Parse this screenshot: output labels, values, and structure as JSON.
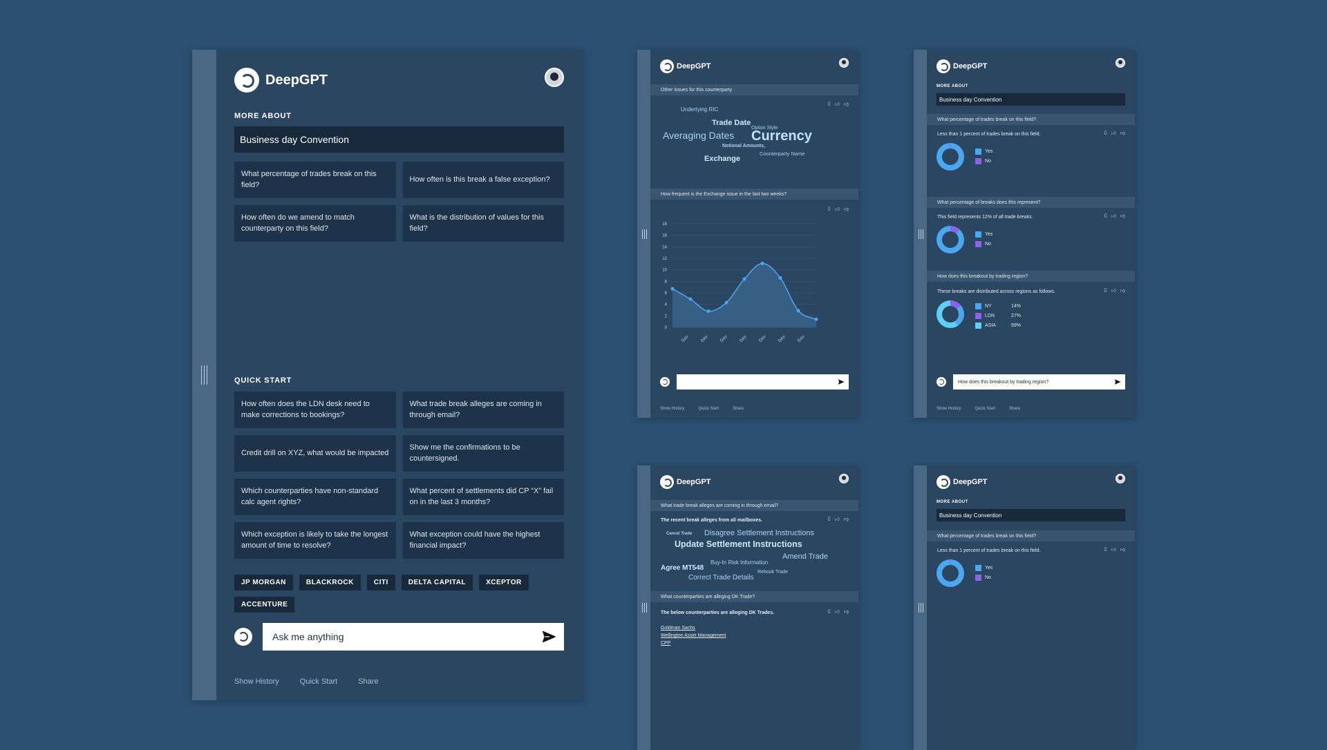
{
  "main": {
    "brand": "DeepGPT",
    "more_about_title": "MORE ABOUT",
    "topic": "Business day Convention",
    "suggestions": [
      "What percentage of trades break on this field?",
      "How often is this break a false exception?",
      "How often do we amend to match counterparty on this field?",
      "What is the distribution of values for this field?"
    ],
    "quick_start_title": "QUICK START",
    "quick_start": [
      "How often does the LDN desk need to make corrections to bookings?",
      "What trade break alleges are coming in through email?",
      "Credit drill on XYZ, what would be impacted",
      "Show me the confirmations to be countersigned.",
      "Which counterparties have non-standard calc agent rights?",
      "What percent of settlements did CP “X” fail on in the last 3 months?",
      "Which exception is likely to take the longest amount of time to resolve?",
      "What exception could have the highest financial impact?"
    ],
    "chips": [
      "JP MORGAN",
      "BLACKROCK",
      "CITI",
      "DELTA CAPITAL",
      "XCEPTOR",
      "ACCENTURE"
    ],
    "ask_placeholder": "Ask me anything",
    "footer": [
      "Show History",
      "Quick Start",
      "Share"
    ]
  },
  "panel_chart": {
    "brand": "DeepGPT",
    "q1": "Other issues for this counterparty",
    "words": [
      {
        "text": "Underlying RIC"
      },
      {
        "text": "Trade Date"
      },
      {
        "text": "Option Style"
      },
      {
        "text": "Averaging Dates"
      },
      {
        "text": "Currency"
      },
      {
        "text": "Notional Amounts,"
      },
      {
        "text": "Counterparty Name"
      },
      {
        "text": "Exchange"
      }
    ],
    "q2": "How frequent is the Exchange issue in the last two weeks?",
    "footer": [
      "Show History",
      "Quick Start",
      "Share"
    ]
  },
  "chart_data": {
    "type": "line",
    "title": "",
    "xlabel": "",
    "ylabel": "",
    "ylim": [
      0,
      18
    ],
    "yticks": [
      0,
      2,
      4,
      6,
      8,
      10,
      12,
      14,
      16,
      18
    ],
    "x_tick_labels": [
      "DAY",
      "DAY",
      "DAY",
      "DAY",
      "DAY",
      "DAY",
      "DAY"
    ],
    "x": [
      0,
      1,
      2,
      3,
      4,
      5,
      6,
      7,
      8
    ],
    "values": [
      6.7,
      4.9,
      2.8,
      4.3,
      8.4,
      11.1,
      8.6,
      2.9,
      1.4
    ],
    "area_fill": true,
    "grid": true,
    "colors": {
      "line": "#4aa8f0",
      "fill": "#3d6a91"
    }
  },
  "panel_regions": {
    "brand": "DeepGPT",
    "more_about": "MORE ABOUT",
    "topic": "Business day Convention",
    "q1": "What percentage of trades break on this field?",
    "a1": "Less than 1 percent of trades break on this field.",
    "q2": "What percentage of breaks does this represent?",
    "a2": "This field represents 12% of all trade breaks.",
    "q3": "How does this breakout by trading region?",
    "a3": "These breaks are distributed across regions as follows.",
    "legend_yes": "Yes",
    "legend_no": "No",
    "regions": [
      {
        "name": "NY",
        "pct": "14%",
        "value": 14,
        "color": "#8a63e8"
      },
      {
        "name": "LDN",
        "pct": "27%",
        "value": 27,
        "color": "#4aa8f0"
      },
      {
        "name": "ASIA",
        "pct": "59%",
        "value": 59,
        "color": "#5fd0f5"
      }
    ],
    "ask_value": "How does this breakout by trading region?",
    "footer": [
      "Show History",
      "Quick Start",
      "Share"
    ],
    "colors": {
      "yes": "#4aa8f0",
      "no": "#8a63e8"
    }
  },
  "panel_alleges": {
    "brand": "DeepGPT",
    "q1": "What trade break alleges are coming in through email?",
    "a1": "The recent break alleges from all mailboxes.",
    "words": [
      {
        "text": "Cancel Trade"
      },
      {
        "text": "Disagree Settlement Instructions"
      },
      {
        "text": "Update Settlement Instructions"
      },
      {
        "text": "Amend Trade"
      },
      {
        "text": "Buy-In Risk Information"
      },
      {
        "text": "Agree MT548"
      },
      {
        "text": "Rebook Trade"
      },
      {
        "text": "Correct Trade Details"
      }
    ],
    "q2": "What counterparties are alleging DK Trade?",
    "a2": "The below counterparties are alleging DK Trades.",
    "links": [
      "Goldman Sachs",
      "Wellington Asset Management",
      "CPP"
    ]
  },
  "panel_simple": {
    "brand": "DeepGPT",
    "more_about": "MORE ABOUT",
    "topic": "Business day Convention",
    "q1": "What percentage of trades break on this field?",
    "a1": "Less than 1 percent of trades break on this field.",
    "legend_yes": "Yes",
    "legend_no": "No"
  }
}
